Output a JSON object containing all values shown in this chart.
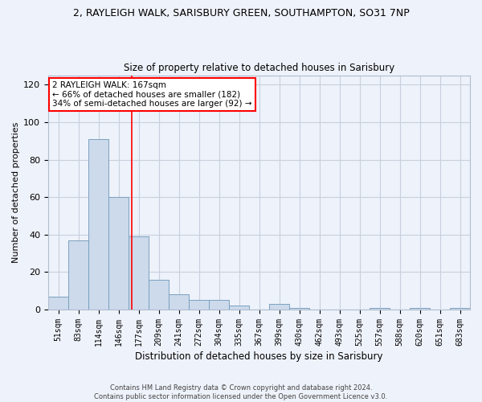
{
  "title_line1": "2, RAYLEIGH WALK, SARISBURY GREEN, SOUTHAMPTON, SO31 7NP",
  "title_line2": "Size of property relative to detached houses in Sarisbury",
  "xlabel": "Distribution of detached houses by size in Sarisbury",
  "ylabel": "Number of detached properties",
  "bar_labels": [
    "51sqm",
    "83sqm",
    "114sqm",
    "146sqm",
    "177sqm",
    "209sqm",
    "241sqm",
    "272sqm",
    "304sqm",
    "335sqm",
    "367sqm",
    "399sqm",
    "430sqm",
    "462sqm",
    "493sqm",
    "525sqm",
    "557sqm",
    "588sqm",
    "620sqm",
    "651sqm",
    "683sqm"
  ],
  "bar_values": [
    7,
    37,
    91,
    60,
    39,
    16,
    8,
    5,
    5,
    2,
    0,
    3,
    1,
    0,
    0,
    0,
    1,
    0,
    1,
    0,
    1
  ],
  "bar_color": "#ccdaeb",
  "bar_edge_color": "#7aa0c0",
  "grid_color": "#c8d0de",
  "background_color": "#eef2fa",
  "annotation_text": "2 RAYLEIGH WALK: 167sqm\n← 66% of detached houses are smaller (182)\n34% of semi-detached houses are larger (92) →",
  "annotation_box_color": "white",
  "annotation_box_edge_color": "red",
  "vline_color": "red",
  "ylim": [
    0,
    125
  ],
  "yticks": [
    0,
    20,
    40,
    60,
    80,
    100,
    120
  ],
  "footer_line1": "Contains HM Land Registry data © Crown copyright and database right 2024.",
  "footer_line2": "Contains public sector information licensed under the Open Government Licence v3.0."
}
